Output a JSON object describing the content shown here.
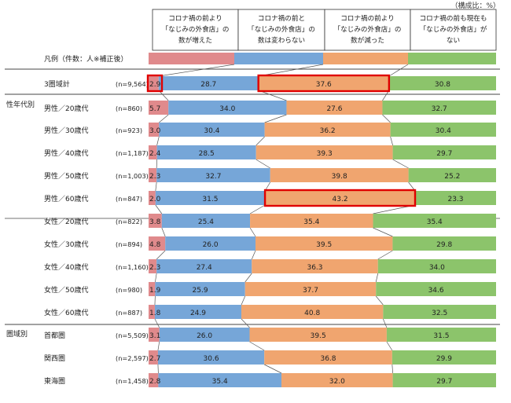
{
  "chart_data": {
    "type": "bar",
    "stacked": true,
    "orientation": "horizontal",
    "unit_note": "（構成比：%）",
    "legend_prefix": "凡例（件数：人※補正後）",
    "legend_position": "top",
    "columns": [
      {
        "lines": [
          "コロナ禍の前より",
          "「なじみの外食店」の",
          "数が増えた"
        ]
      },
      {
        "lines": [
          "コロナ禍の前と",
          "「なじみの外食店」の",
          "数は変わらない"
        ]
      },
      {
        "lines": [
          "コロナ禍の前より",
          "「なじみの外食店」の",
          "数が減った"
        ]
      },
      {
        "lines": [
          "コロナ禍の前も現在も",
          "「なじみの外食店」が",
          "ない"
        ]
      }
    ],
    "series_colors": [
      "#e08a8c",
      "#76a6d8",
      "#f0a56f",
      "#8cc46b"
    ],
    "highlight_color": "#e00000",
    "groups": [
      {
        "label": "",
        "rows": [
          0
        ]
      },
      {
        "label": "性年代別",
        "rows": [
          1,
          2,
          3,
          4,
          5,
          6,
          7,
          8,
          9,
          10
        ]
      },
      {
        "label": "圏域別",
        "rows": [
          11,
          12,
          13
        ]
      }
    ],
    "rows": [
      {
        "label": "3圏域計",
        "n": "(n=9,564)",
        "values": [
          2.9,
          28.7,
          37.6,
          30.8
        ],
        "highlight": [
          0,
          2
        ]
      },
      {
        "label": "男性／20歳代",
        "n": "(n=860)",
        "values": [
          5.7,
          34.0,
          27.6,
          32.7
        ],
        "highlight": []
      },
      {
        "label": "男性／30歳代",
        "n": "(n=923)",
        "values": [
          3.0,
          30.4,
          36.2,
          30.4
        ],
        "highlight": []
      },
      {
        "label": "男性／40歳代",
        "n": "(n=1,187)",
        "values": [
          2.4,
          28.5,
          39.3,
          29.7
        ],
        "highlight": []
      },
      {
        "label": "男性／50歳代",
        "n": "(n=1,003)",
        "values": [
          2.3,
          32.7,
          39.8,
          25.2
        ],
        "highlight": []
      },
      {
        "label": "男性／60歳代",
        "n": "(n=847)",
        "values": [
          2.0,
          31.5,
          43.2,
          23.3
        ],
        "highlight": [
          2
        ]
      },
      {
        "label": "女性／20歳代",
        "n": "(n=822)",
        "values": [
          3.8,
          25.4,
          35.4,
          35.4
        ],
        "highlight": []
      },
      {
        "label": "女性／30歳代",
        "n": "(n=894)",
        "values": [
          4.8,
          26.0,
          39.5,
          29.8
        ],
        "highlight": []
      },
      {
        "label": "女性／40歳代",
        "n": "(n=1,160)",
        "values": [
          2.3,
          27.4,
          36.3,
          34.0
        ],
        "highlight": []
      },
      {
        "label": "女性／50歳代",
        "n": "(n=980)",
        "values": [
          1.9,
          25.9,
          37.7,
          34.6
        ],
        "highlight": []
      },
      {
        "label": "女性／60歳代",
        "n": "(n=887)",
        "values": [
          1.8,
          24.9,
          40.8,
          32.5
        ],
        "highlight": []
      },
      {
        "label": "首都圏",
        "n": "(n=5,509)",
        "values": [
          3.1,
          26.0,
          39.5,
          31.5
        ],
        "highlight": []
      },
      {
        "label": "関西圏",
        "n": "(n=2,597)",
        "values": [
          2.7,
          30.6,
          36.8,
          29.9
        ],
        "highlight": []
      },
      {
        "label": "東海圏",
        "n": "(n=1,458)",
        "values": [
          2.8,
          35.4,
          32.0,
          29.7
        ],
        "highlight": []
      }
    ],
    "xlim": [
      0,
      100
    ],
    "grid": false
  }
}
